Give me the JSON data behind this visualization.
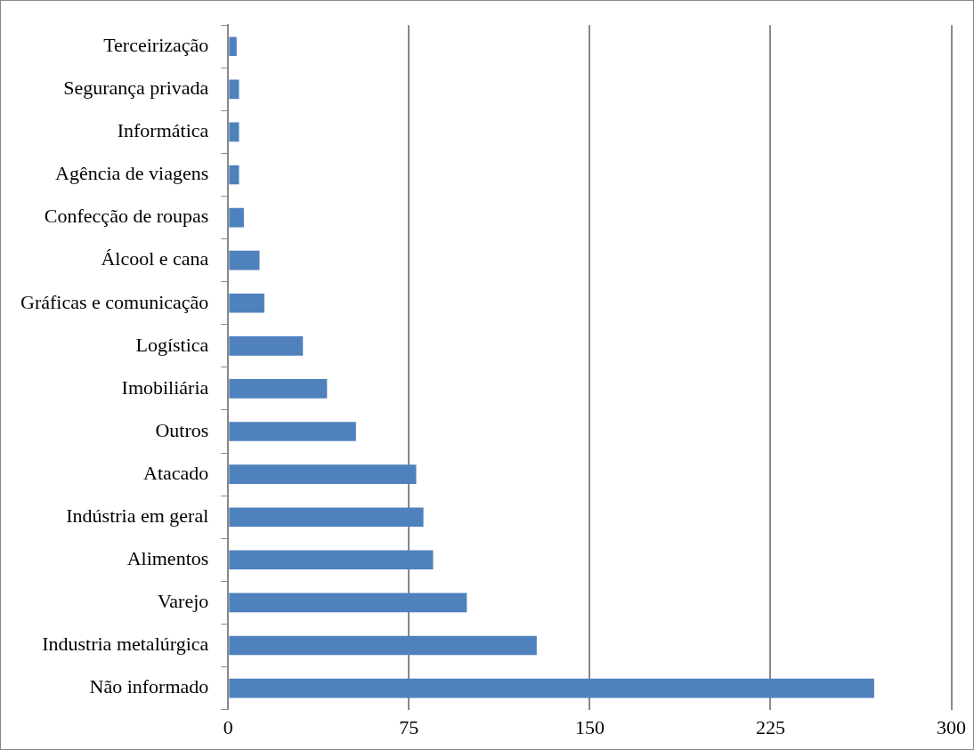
{
  "chart_data": {
    "type": "bar",
    "orientation": "horizontal",
    "categories": [
      "Terceirização",
      "Segurança privada",
      "Informática",
      "Agência de viagens",
      "Confecção de roupas",
      "Álcool e cana",
      "Gráficas e comunicação",
      "Logística",
      "Imobiliária",
      "Outros",
      "Atacado",
      "Indústria em geral",
      "Alimentos",
      "Varejo",
      "Industria metalúrgica",
      "Não informado"
    ],
    "values": [
      3.5,
      4.5,
      4.5,
      4.5,
      6.5,
      13,
      15,
      31,
      41,
      53,
      78,
      81,
      85,
      99,
      128,
      268
    ],
    "color": "#4f81bd",
    "xlim": [
      0,
      300
    ],
    "xticks": [
      0,
      75,
      150,
      225,
      300
    ],
    "grid": "x",
    "legend": false
  }
}
